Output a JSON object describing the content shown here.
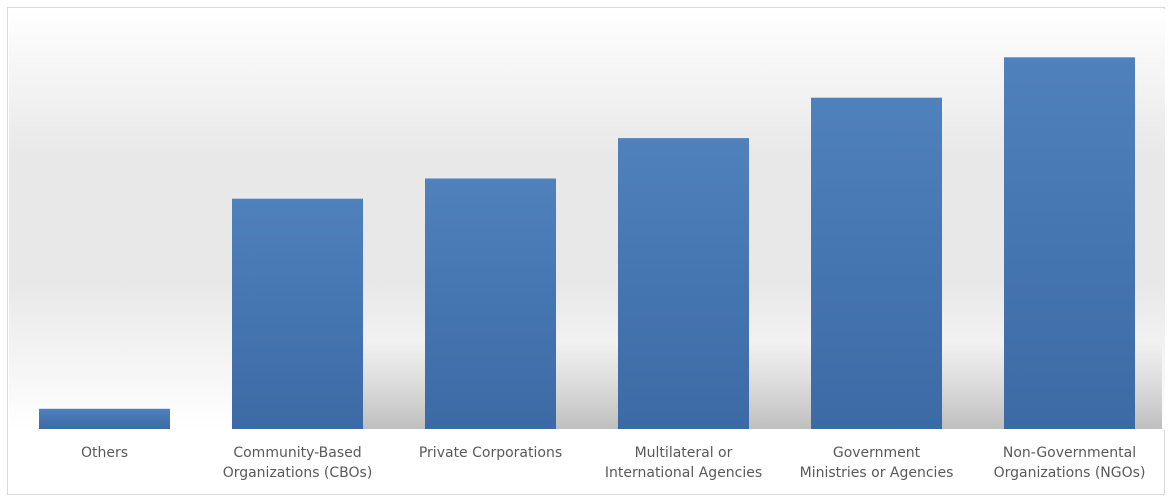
{
  "chart_data": {
    "type": "bar",
    "categories": [
      [
        "Others"
      ],
      [
        "Community-Based",
        "Organizations (CBOs)"
      ],
      [
        "Private Corporations"
      ],
      [
        "Multilateral or",
        "International Agencies"
      ],
      [
        "Government",
        "Ministries or Agencies"
      ],
      [
        "Non-Governmental",
        "Organizations (NGOs)"
      ]
    ],
    "values": [
      1.0,
      11.4,
      12.4,
      14.4,
      16.4,
      18.4
    ],
    "ylim": [
      0,
      20
    ],
    "title": "",
    "xlabel": "",
    "ylabel": "",
    "grid": false,
    "legend": "none",
    "colors": {
      "bar_top": "#4f81bd",
      "bar_bottom": "#3c6aa5",
      "label": "#595959",
      "frame": "#d9d9d9",
      "wall_top": "#ffffff",
      "wall_mid": "#e8e8e8",
      "shadow": "#b3b3b3"
    }
  }
}
